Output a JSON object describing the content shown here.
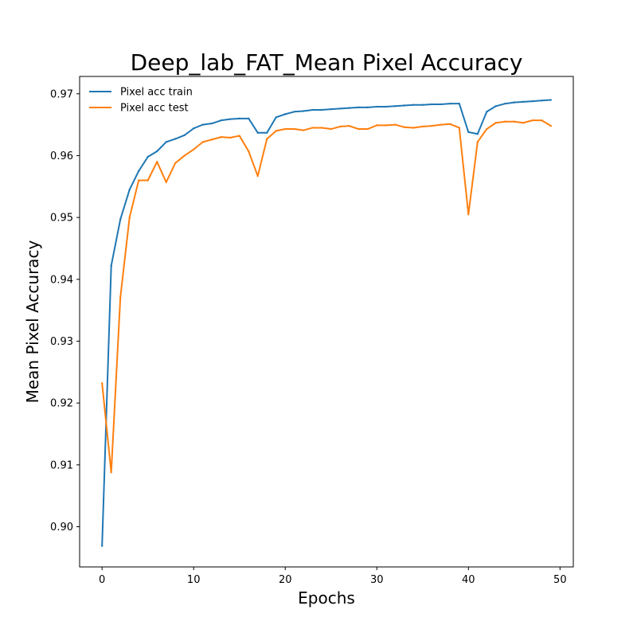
{
  "chart_data": {
    "type": "line",
    "title": "Deep_lab_FAT_Mean Pixel Accuracy",
    "xlabel": "Epochs",
    "ylabel": "Mean Pixel Accuracy",
    "xlim": [
      -2.45,
      51.45
    ],
    "ylim": [
      0.8935,
      0.9728
    ],
    "xticks": [
      0,
      10,
      20,
      30,
      40,
      50
    ],
    "xtick_labels": [
      "0",
      "10",
      "20",
      "30",
      "40",
      "50"
    ],
    "yticks": [
      0.9,
      0.91,
      0.92,
      0.93,
      0.94,
      0.95,
      0.96,
      0.97
    ],
    "ytick_labels": [
      "0.90",
      "0.91",
      "0.92",
      "0.93",
      "0.94",
      "0.95",
      "0.96",
      "0.97"
    ],
    "grid": false,
    "legend_position": "upper-left",
    "x": [
      0,
      1,
      2,
      3,
      4,
      5,
      6,
      7,
      8,
      9,
      10,
      11,
      12,
      13,
      14,
      15,
      16,
      17,
      18,
      19,
      20,
      21,
      22,
      23,
      24,
      25,
      26,
      27,
      28,
      29,
      30,
      31,
      32,
      33,
      34,
      35,
      36,
      37,
      38,
      39,
      40,
      41,
      42,
      43,
      44,
      45,
      46,
      47,
      48,
      49
    ],
    "series": [
      {
        "name": "Pixel acc train",
        "color": "#1f77b4",
        "values": [
          0.8969,
          0.9422,
          0.9497,
          0.9545,
          0.9575,
          0.9598,
          0.9607,
          0.9622,
          0.9627,
          0.9633,
          0.9644,
          0.965,
          0.9652,
          0.9657,
          0.9659,
          0.966,
          0.966,
          0.9637,
          0.9637,
          0.9662,
          0.9667,
          0.9671,
          0.9672,
          0.9674,
          0.9674,
          0.9675,
          0.9676,
          0.9677,
          0.9678,
          0.9678,
          0.9679,
          0.9679,
          0.968,
          0.9681,
          0.9682,
          0.9682,
          0.9683,
          0.9683,
          0.9684,
          0.9684,
          0.9638,
          0.9635,
          0.9671,
          0.968,
          0.9684,
          0.9686,
          0.9687,
          0.9688,
          0.9689,
          0.969
        ]
      },
      {
        "name": "Pixel acc test",
        "color": "#ff7f0e",
        "values": [
          0.9232,
          0.9088,
          0.9371,
          0.95,
          0.956,
          0.956,
          0.959,
          0.9557,
          0.9588,
          0.96,
          0.961,
          0.9622,
          0.9626,
          0.963,
          0.9629,
          0.9632,
          0.9607,
          0.9567,
          0.9627,
          0.964,
          0.9643,
          0.9643,
          0.9641,
          0.9645,
          0.9645,
          0.9643,
          0.9647,
          0.9648,
          0.9643,
          0.9643,
          0.9649,
          0.9649,
          0.965,
          0.9646,
          0.9645,
          0.9647,
          0.9648,
          0.965,
          0.9651,
          0.9645,
          0.9505,
          0.9622,
          0.9643,
          0.9653,
          0.9655,
          0.9655,
          0.9653,
          0.9657,
          0.9657,
          0.9648
        ]
      }
    ]
  }
}
